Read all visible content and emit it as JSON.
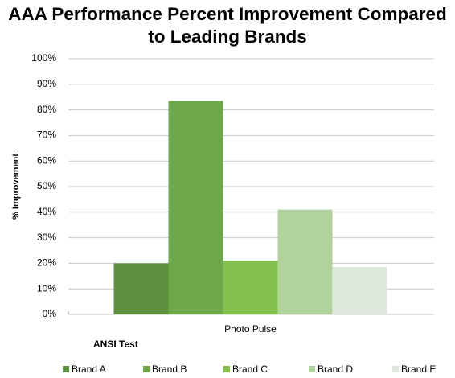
{
  "chart_data": {
    "type": "bar",
    "title": "AAA Performance Percent Improvement Compared to Leading Brands",
    "y_label": "% Improvement",
    "annotation": "ANSI Test",
    "categories": [
      "Photo Pulse"
    ],
    "series": [
      {
        "name": "Brand A",
        "color": "#5e8f3e",
        "values": [
          20
        ]
      },
      {
        "name": "Brand B",
        "color": "#6ea84a",
        "values": [
          83.5
        ]
      },
      {
        "name": "Brand C",
        "color": "#83c04e",
        "values": [
          21
        ]
      },
      {
        "name": "Brand D",
        "color": "#b3d39e",
        "values": [
          41
        ]
      },
      {
        "name": "Brand E",
        "color": "#dfe8dc",
        "values": [
          18.5
        ]
      }
    ],
    "ylim": [
      0,
      100
    ],
    "yticks": [
      {
        "value": 0,
        "label": "0%"
      },
      {
        "value": 10,
        "label": "10%"
      },
      {
        "value": 20,
        "label": "20%"
      },
      {
        "value": 30,
        "label": "30%"
      },
      {
        "value": 40,
        "label": "40%"
      },
      {
        "value": 50,
        "label": "50%"
      },
      {
        "value": 60,
        "label": "60%"
      },
      {
        "value": 70,
        "label": "70%"
      },
      {
        "value": 80,
        "label": "80%"
      },
      {
        "value": 90,
        "label": "90%"
      },
      {
        "value": 100,
        "label": "100%"
      }
    ],
    "grid": true,
    "legend": "bottom"
  }
}
